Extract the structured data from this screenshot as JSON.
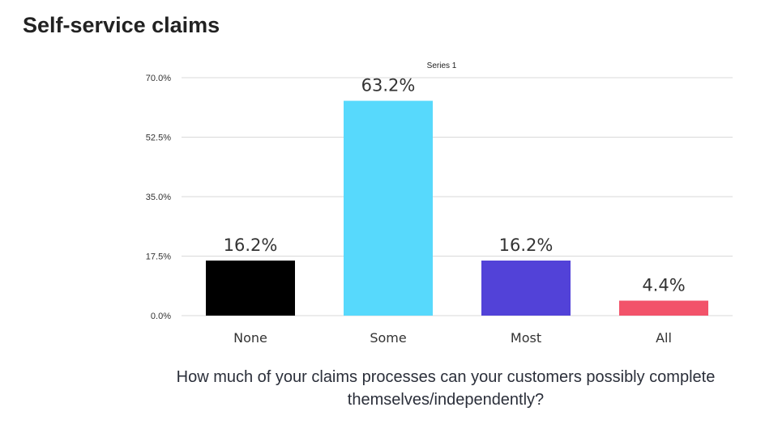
{
  "page": {
    "title": "Self-service claims",
    "question": "How much of your claims processes can your customers possibly complete themselves/independently?"
  },
  "chart_data": {
    "type": "bar",
    "title": "",
    "legend": "Series 1",
    "legend_position": "top-center",
    "xlabel": "",
    "ylabel": "",
    "categories": [
      "None",
      "Some",
      "Most",
      "All"
    ],
    "series": [
      {
        "name": "Series 1",
        "values": [
          16.2,
          63.2,
          16.2,
          4.4
        ]
      }
    ],
    "data_labels": [
      "16.2%",
      "63.2%",
      "16.2%",
      "4.4%"
    ],
    "bar_colors": [
      "#000000",
      "#57d9fc",
      "#5242d8",
      "#f2536a"
    ],
    "ylim": [
      0,
      70
    ],
    "yticks": [
      0,
      17.5,
      35,
      52.5,
      70
    ],
    "ytick_labels": [
      "0.0%",
      "17.5%",
      "35.0%",
      "52.5%",
      "70.0%"
    ],
    "grid": true,
    "gridline_color": "#d9d9d9"
  }
}
